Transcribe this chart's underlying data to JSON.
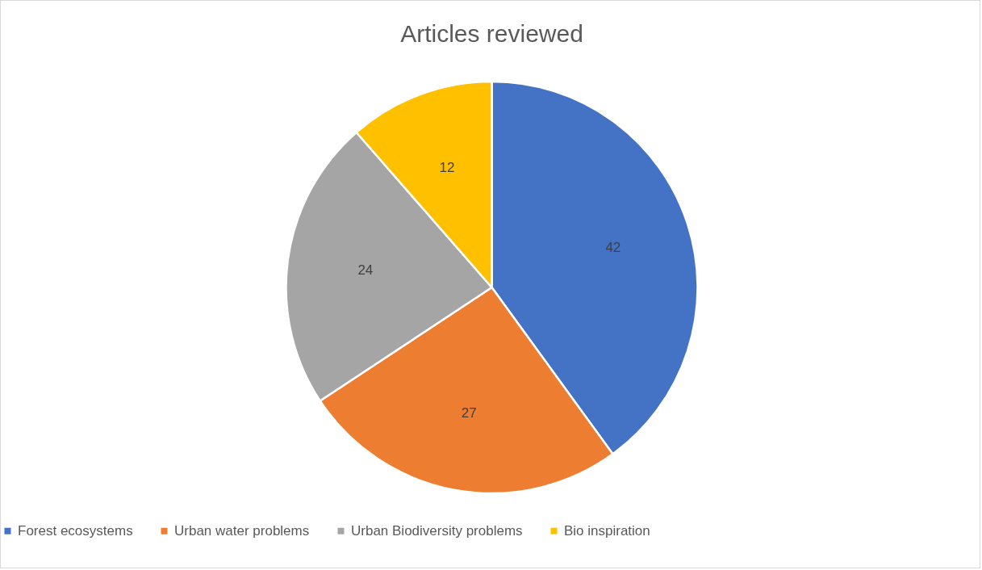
{
  "chart_data": {
    "type": "pie",
    "title": "Articles reviewed",
    "categories": [
      "Forest ecosystems",
      "Urban water problems",
      "Urban Biodiversity problems",
      "Bio inspiration"
    ],
    "values": [
      42,
      27,
      24,
      12
    ],
    "colors": [
      "#4472c4",
      "#ed7d31",
      "#a5a5a5",
      "#ffc000"
    ],
    "data_labels": true,
    "legend": "bottom"
  }
}
